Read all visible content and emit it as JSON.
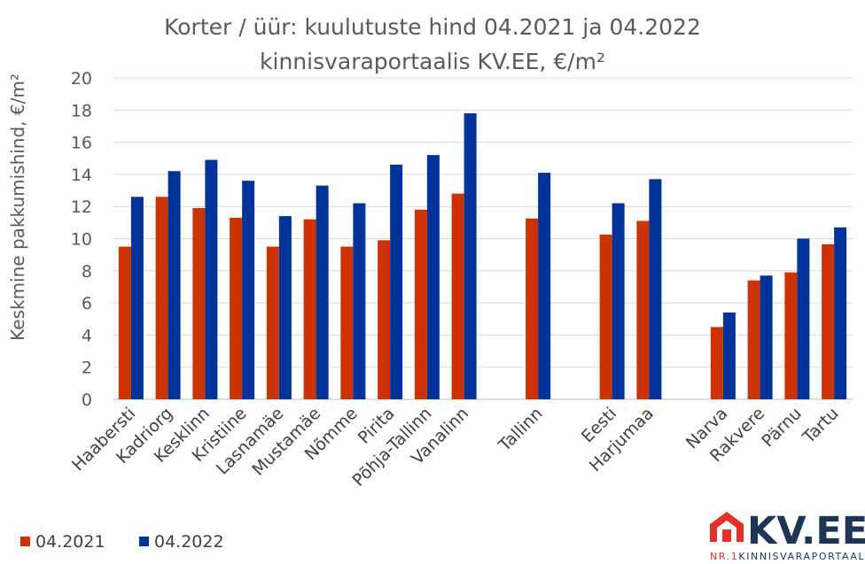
{
  "chart_data": {
    "type": "bar",
    "title": "Korter / üür: kuulutuste hind 04.2021 ja 04.2022",
    "subtitle": "kinnisvaraportaalis KV.EE, €/m²",
    "ylabel": "Keskmine pakkumishind, €/m²",
    "xlabel": "",
    "ylim": [
      0,
      20
    ],
    "yticks": [
      "0",
      "2",
      "4",
      "6",
      "8",
      "10",
      "12",
      "14",
      "16",
      "18",
      "20"
    ],
    "grid": true,
    "legend_position": "bottom-left",
    "categories": [
      "Haabersti",
      "Kadriorg",
      "Kesklinn",
      "Kristiine",
      "Lasnamäe",
      "Mustamäe",
      "Nõmme",
      "Pirita",
      "Põhja-Tallinn",
      "Vanalinn",
      "",
      "Tallinn",
      "",
      "Eesti",
      "Harjumaa",
      "",
      "Narva",
      "Rakvere",
      "Pärnu",
      "Tartu"
    ],
    "series": [
      {
        "name": "04.2021",
        "color": "#cc3300",
        "values": [
          9.5,
          12.6,
          11.9,
          11.3,
          9.5,
          11.2,
          9.5,
          9.9,
          11.8,
          12.8,
          null,
          11.25,
          null,
          10.25,
          11.1,
          null,
          4.5,
          7.4,
          7.9,
          9.65
        ]
      },
      {
        "name": "04.2022",
        "color": "#003399",
        "values": [
          12.6,
          14.2,
          14.9,
          13.6,
          11.4,
          13.3,
          12.2,
          14.6,
          15.2,
          17.8,
          null,
          14.1,
          null,
          12.2,
          13.7,
          null,
          5.4,
          7.7,
          10.0,
          10.7
        ]
      }
    ]
  },
  "logo": {
    "text": "KV.EE",
    "tagline_prefix": "NR.1",
    "tagline": "KINNISVARAPORTAAL",
    "red": "#e3312a",
    "navy": "#1f3556"
  }
}
